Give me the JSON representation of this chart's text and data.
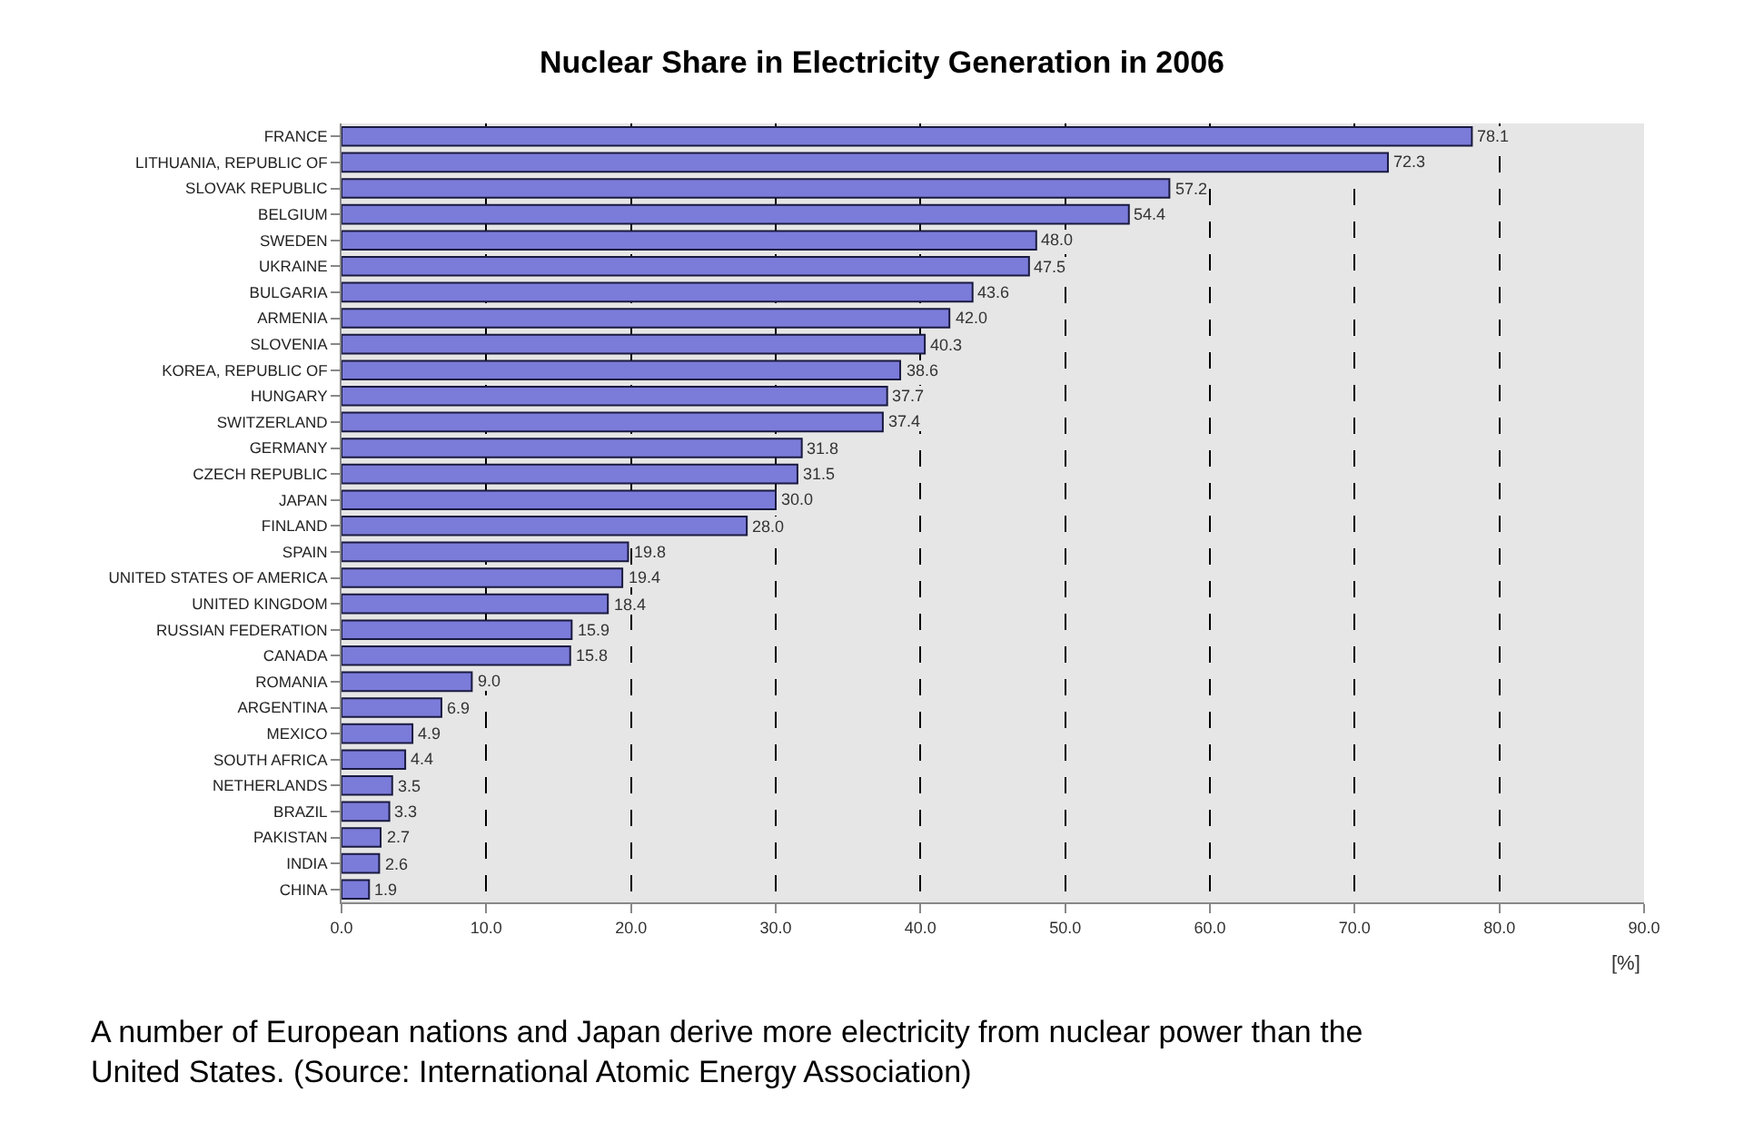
{
  "chart_data": {
    "type": "bar",
    "orientation": "horizontal",
    "title": "Nuclear Share in Electricity Generation in 2006",
    "xlabel": "[%]",
    "categories": [
      "FRANCE",
      "LITHUANIA, REPUBLIC OF",
      "SLOVAK REPUBLIC",
      "BELGIUM",
      "SWEDEN",
      "UKRAINE",
      "BULGARIA",
      "ARMENIA",
      "SLOVENIA",
      "KOREA, REPUBLIC OF",
      "HUNGARY",
      "SWITZERLAND",
      "GERMANY",
      "CZECH REPUBLIC",
      "JAPAN",
      "FINLAND",
      "SPAIN",
      "UNITED STATES OF AMERICA",
      "UNITED KINGDOM",
      "RUSSIAN FEDERATION",
      "CANADA",
      "ROMANIA",
      "ARGENTINA",
      "MEXICO",
      "SOUTH AFRICA",
      "NETHERLANDS",
      "BRAZIL",
      "PAKISTAN",
      "INDIA",
      "CHINA"
    ],
    "values": [
      78.1,
      72.3,
      57.2,
      54.4,
      48.0,
      47.5,
      43.6,
      42.0,
      40.3,
      38.6,
      37.7,
      37.4,
      31.8,
      31.5,
      30.0,
      28.0,
      19.8,
      19.4,
      18.4,
      15.9,
      15.8,
      9.0,
      6.9,
      4.9,
      4.4,
      3.5,
      3.3,
      2.7,
      2.6,
      1.9
    ],
    "value_labels": [
      "78.1",
      "72.3",
      "57.2",
      "54.4",
      "48.0",
      "47.5",
      "43.6",
      "42.0",
      "40.3",
      "38.6",
      "37.7",
      "37.4",
      "31.8",
      "31.5",
      "30.0",
      "28.0",
      "19.8",
      "19.4",
      "18.4",
      "15.9",
      "15.8",
      "9.0",
      "6.9",
      "4.9",
      "4.4",
      "3.5",
      "3.3",
      "2.7",
      "2.6",
      "1.9"
    ],
    "color": "#7b7bd9",
    "xlim": [
      0,
      90
    ],
    "xticks": [
      {
        "value": 0,
        "label": "0.0"
      },
      {
        "value": 10,
        "label": "10.0"
      },
      {
        "value": 20,
        "label": "20.0"
      },
      {
        "value": 30,
        "label": "30.0"
      },
      {
        "value": 40,
        "label": "40.0"
      },
      {
        "value": 50,
        "label": "50.0"
      },
      {
        "value": 60,
        "label": "60.0"
      },
      {
        "value": 70,
        "label": "70.0"
      },
      {
        "value": 80,
        "label": "80.0"
      },
      {
        "value": 90,
        "label": "90.0"
      }
    ],
    "grid": "x",
    "line_style": "dashed",
    "legend": false,
    "annotations": [
      "A number of European nations and Japan derive more electricity from nuclear power than the United States. (Source: International Atomic Energy Association)"
    ]
  }
}
